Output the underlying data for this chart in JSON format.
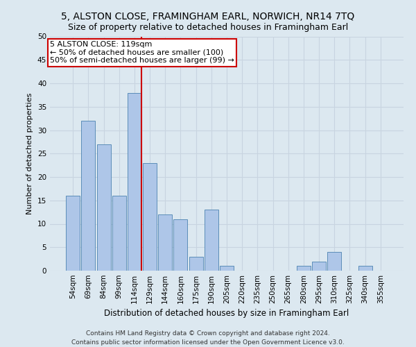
{
  "title": "5, ALSTON CLOSE, FRAMINGHAM EARL, NORWICH, NR14 7TQ",
  "subtitle": "Size of property relative to detached houses in Framingham Earl",
  "xlabel": "Distribution of detached houses by size in Framingham Earl",
  "ylabel": "Number of detached properties",
  "footer_line1": "Contains HM Land Registry data © Crown copyright and database right 2024.",
  "footer_line2": "Contains public sector information licensed under the Open Government Licence v3.0.",
  "bar_labels": [
    "54sqm",
    "69sqm",
    "84sqm",
    "99sqm",
    "114sqm",
    "129sqm",
    "144sqm",
    "160sqm",
    "175sqm",
    "190sqm",
    "205sqm",
    "220sqm",
    "235sqm",
    "250sqm",
    "265sqm",
    "280sqm",
    "295sqm",
    "310sqm",
    "325sqm",
    "340sqm",
    "355sqm"
  ],
  "bar_values": [
    16,
    32,
    27,
    16,
    38,
    23,
    12,
    11,
    3,
    13,
    1,
    0,
    0,
    0,
    0,
    1,
    2,
    4,
    0,
    1,
    0
  ],
  "bar_color": "#aec6e8",
  "bar_edge_color": "#5b8db8",
  "vline_color": "#cc0000",
  "annotation_text": "5 ALSTON CLOSE: 119sqm\n← 50% of detached houses are smaller (100)\n50% of semi-detached houses are larger (99) →",
  "annotation_box_facecolor": "#ffffff",
  "annotation_box_edgecolor": "#cc0000",
  "ylim": [
    0,
    50
  ],
  "yticks": [
    0,
    5,
    10,
    15,
    20,
    25,
    30,
    35,
    40,
    45,
    50
  ],
  "grid_color": "#c8d4e0",
  "bg_color": "#dce8f0",
  "title_fontsize": 10,
  "subtitle_fontsize": 9,
  "xlabel_fontsize": 8.5,
  "ylabel_fontsize": 8,
  "tick_fontsize": 7.5,
  "footer_fontsize": 6.5,
  "annot_fontsize": 8
}
